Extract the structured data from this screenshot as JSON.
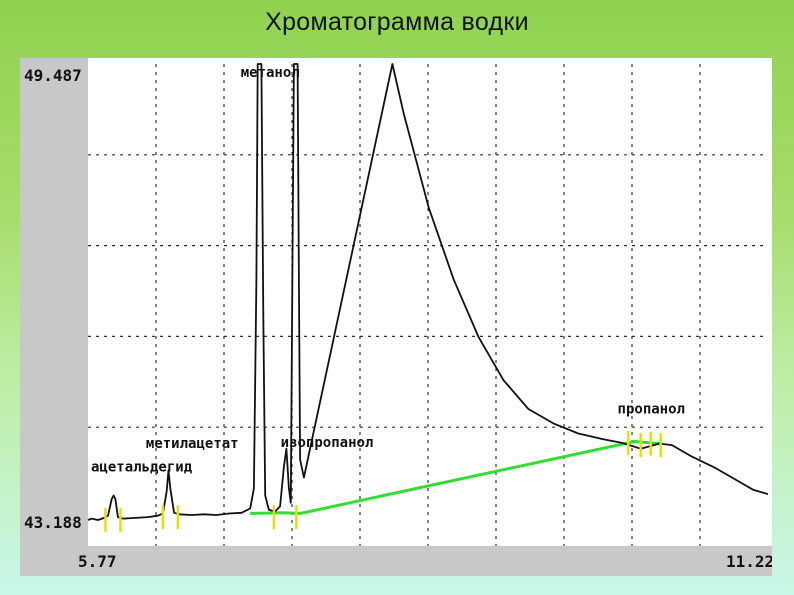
{
  "title": "Хроматограмма водки",
  "colors": {
    "background_top": "#8fd24f",
    "background_bottom": "#c9f7e9",
    "axis_panel": "#c8c8c8",
    "grid": "#333333",
    "trace": "#111111",
    "baseline": "#33dd33",
    "peak_markers": "#e8e000"
  },
  "chart_data": {
    "type": "line",
    "title": "Хроматограмма водки",
    "xlabel": "",
    "ylabel": "",
    "xlim": [
      5.77,
      11.22
    ],
    "ylim": [
      43.188,
      49.487
    ],
    "x_tick_labels": [
      "5.77",
      "11.22"
    ],
    "y_tick_labels": [
      "49.487",
      "43.188"
    ],
    "grid": true,
    "grid_divisions": {
      "x": 10,
      "y": 5
    },
    "series": [
      {
        "role": "trace",
        "points": [
          [
            5.77,
            43.16
          ],
          [
            5.8,
            43.18
          ],
          [
            5.85,
            43.16
          ],
          [
            5.9,
            43.19
          ],
          [
            5.93,
            43.22
          ],
          [
            5.96,
            43.45
          ],
          [
            5.975,
            43.5
          ],
          [
            5.99,
            43.45
          ],
          [
            6.01,
            43.2
          ],
          [
            6.05,
            43.18
          ],
          [
            6.15,
            43.19
          ],
          [
            6.25,
            43.2
          ],
          [
            6.33,
            43.22
          ],
          [
            6.37,
            43.25
          ],
          [
            6.4,
            43.55
          ],
          [
            6.415,
            43.85
          ],
          [
            6.43,
            43.6
          ],
          [
            6.46,
            43.26
          ],
          [
            6.5,
            43.24
          ],
          [
            6.6,
            43.23
          ],
          [
            6.7,
            43.24
          ],
          [
            6.8,
            43.23
          ],
          [
            6.9,
            43.25
          ],
          [
            7.0,
            43.26
          ],
          [
            7.07,
            43.32
          ],
          [
            7.1,
            43.6
          ],
          [
            7.12,
            46.5
          ],
          [
            7.13,
            49.487
          ],
          [
            7.16,
            49.487
          ],
          [
            7.175,
            46.0
          ],
          [
            7.19,
            43.5
          ],
          [
            7.22,
            43.3
          ],
          [
            7.27,
            43.28
          ],
          [
            7.31,
            43.35
          ],
          [
            7.34,
            43.9
          ],
          [
            7.36,
            44.15
          ],
          [
            7.38,
            43.6
          ],
          [
            7.395,
            43.4
          ],
          [
            7.41,
            47.0
          ],
          [
            7.42,
            49.487
          ],
          [
            7.45,
            49.487
          ],
          [
            7.46,
            46.5
          ],
          [
            7.47,
            44.0
          ],
          [
            7.5,
            43.75
          ],
          [
            8.21,
            49.487
          ],
          [
            8.3,
            48.8
          ],
          [
            8.5,
            47.5
          ],
          [
            8.7,
            46.5
          ],
          [
            8.9,
            45.7
          ],
          [
            9.1,
            45.1
          ],
          [
            9.3,
            44.7
          ],
          [
            9.5,
            44.5
          ],
          [
            9.7,
            44.36
          ],
          [
            9.9,
            44.28
          ],
          [
            10.05,
            44.23
          ],
          [
            10.2,
            44.15
          ],
          [
            10.35,
            44.22
          ],
          [
            10.45,
            44.2
          ],
          [
            10.6,
            44.05
          ],
          [
            10.8,
            43.88
          ],
          [
            11.0,
            43.68
          ],
          [
            11.1,
            43.58
          ],
          [
            11.22,
            43.52
          ]
        ]
      },
      {
        "role": "integration-baseline",
        "points": [
          [
            7.07,
            43.25
          ],
          [
            7.33,
            43.26
          ],
          [
            7.47,
            43.25
          ],
          [
            10.15,
            44.25
          ],
          [
            10.35,
            44.22
          ]
        ]
      }
    ],
    "peak_markers": [
      [
        5.91,
        43.16
      ],
      [
        6.03,
        43.16
      ],
      [
        6.37,
        43.2
      ],
      [
        6.49,
        43.2
      ],
      [
        7.26,
        43.2
      ],
      [
        7.44,
        43.2
      ],
      [
        10.1,
        44.23
      ],
      [
        10.2,
        44.2
      ],
      [
        10.28,
        44.22
      ],
      [
        10.36,
        44.2
      ]
    ],
    "annotations": [
      {
        "text": "ацетальдегид",
        "x": 5.77,
        "y": 43.83
      },
      {
        "text": "метилацетат",
        "x": 6.21,
        "y": 44.16
      },
      {
        "text": "метанол",
        "x": 6.97,
        "y": 49.307
      },
      {
        "text": "изопропанол",
        "x": 7.29,
        "y": 44.17
      },
      {
        "text": "пропанол",
        "x": 9.99,
        "y": 44.64
      }
    ]
  }
}
